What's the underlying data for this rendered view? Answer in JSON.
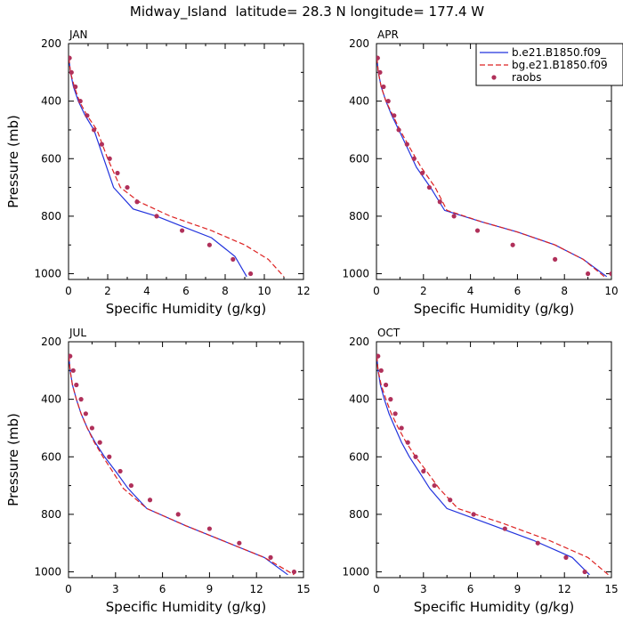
{
  "figure": {
    "title": "Midway_Island  latitude= 28.3 N longitude= 177.4 W"
  },
  "legend": {
    "entries": [
      {
        "label": "b.e21.B1850.f09_",
        "style": "solid",
        "color": "#2233dd"
      },
      {
        "label": "bg.e21.B1850.f09",
        "style": "dashed",
        "color": "#dd2222"
      },
      {
        "label": "raobs",
        "style": "dots",
        "color": "#b0305a"
      }
    ]
  },
  "colors": {
    "model_b": "#2233dd",
    "model_bg": "#dd2222",
    "raobs": "#b0305a"
  },
  "chart_data": [
    {
      "type": "line",
      "panel_label": "JAN",
      "xlabel": "Specific Humidity (g/kg)",
      "ylabel": "Pressure (mb)",
      "xlim": [
        0,
        12
      ],
      "ylim": [
        1020,
        200
      ],
      "xticks": [
        0,
        2,
        4,
        6,
        8,
        10,
        12
      ],
      "yticks": [
        200,
        400,
        600,
        800,
        1000
      ],
      "show_ylabel": true,
      "series": [
        {
          "name": "b.e21.B1850.f09_",
          "x": [
            0.02,
            0.1,
            0.25,
            0.5,
            0.85,
            1.3,
            1.8,
            2.3,
            3.3,
            4.5,
            5.6,
            7.3,
            8.5,
            9.1
          ],
          "y": [
            250,
            300,
            350,
            400,
            450,
            500,
            600,
            700,
            775,
            800,
            830,
            875,
            940,
            1010
          ]
        },
        {
          "name": "bg.e21.B1850.f09",
          "x": [
            0.02,
            0.1,
            0.3,
            0.55,
            0.95,
            1.45,
            2.0,
            2.65,
            3.6,
            5.2,
            7.3,
            9.0,
            10.2,
            11.0
          ],
          "y": [
            250,
            300,
            350,
            400,
            450,
            500,
            600,
            700,
            750,
            800,
            850,
            900,
            950,
            1010
          ]
        },
        {
          "name": "raobs",
          "x": [
            0.05,
            0.15,
            0.35,
            0.6,
            0.95,
            1.3,
            1.7,
            2.1,
            2.5,
            3.0,
            3.5,
            4.5,
            5.8,
            7.2,
            8.4,
            9.3
          ],
          "y": [
            250,
            300,
            350,
            400,
            450,
            500,
            550,
            600,
            650,
            700,
            750,
            800,
            850,
            900,
            950,
            1000
          ]
        }
      ]
    },
    {
      "type": "line",
      "panel_label": "APR",
      "xlabel": "Specific Humidity (g/kg)",
      "ylabel": "",
      "xlim": [
        0,
        10
      ],
      "ylim": [
        1020,
        200
      ],
      "xticks": [
        0,
        2,
        4,
        6,
        8,
        10
      ],
      "yticks": [
        200,
        400,
        600,
        800,
        1000
      ],
      "show_ylabel": false,
      "series": [
        {
          "name": "b.e21.B1850.f09_",
          "x": [
            0.02,
            0.08,
            0.2,
            0.4,
            0.65,
            0.95,
            1.3,
            1.7,
            2.3,
            2.9,
            4.5,
            6.0,
            7.6,
            8.8,
            9.8
          ],
          "y": [
            250,
            300,
            350,
            400,
            450,
            500,
            560,
            630,
            700,
            780,
            820,
            855,
            900,
            950,
            1010
          ]
        },
        {
          "name": "bg.e21.B1850.f09",
          "x": [
            0.02,
            0.08,
            0.2,
            0.4,
            0.7,
            1.0,
            1.4,
            1.9,
            2.5,
            3.0,
            4.5,
            6.0,
            7.6,
            8.8,
            9.7
          ],
          "y": [
            250,
            300,
            350,
            400,
            450,
            500,
            560,
            630,
            700,
            780,
            820,
            855,
            900,
            950,
            1010
          ]
        },
        {
          "name": "raobs",
          "x": [
            0.05,
            0.15,
            0.3,
            0.5,
            0.75,
            0.95,
            1.3,
            1.6,
            1.95,
            2.25,
            2.7,
            3.3,
            4.3,
            5.8,
            7.6,
            9.0,
            10.0
          ],
          "y": [
            250,
            300,
            350,
            400,
            450,
            500,
            550,
            600,
            650,
            700,
            750,
            800,
            850,
            900,
            950,
            1000,
            1000
          ]
        }
      ]
    },
    {
      "type": "line",
      "panel_label": "JUL",
      "xlabel": "Specific Humidity (g/kg)",
      "ylabel": "Pressure (mb)",
      "xlim": [
        0,
        15
      ],
      "ylim": [
        1020,
        200
      ],
      "xticks": [
        0,
        3,
        6,
        9,
        12,
        15
      ],
      "yticks": [
        200,
        400,
        600,
        800,
        1000
      ],
      "show_ylabel": true,
      "series": [
        {
          "name": "b.e21.B1850.f09_",
          "x": [
            0.02,
            0.1,
            0.25,
            0.5,
            0.8,
            1.2,
            1.7,
            2.3,
            3.0,
            3.8,
            5.0,
            7.5,
            10.0,
            12.5,
            14.0
          ],
          "y": [
            250,
            300,
            350,
            400,
            450,
            500,
            550,
            600,
            650,
            710,
            780,
            840,
            895,
            950,
            1010
          ]
        },
        {
          "name": "bg.e21.B1850.f09",
          "x": [
            0.02,
            0.1,
            0.25,
            0.5,
            0.8,
            1.2,
            1.65,
            2.2,
            2.8,
            3.5,
            5.0,
            7.5,
            10.0,
            12.5,
            14.4
          ],
          "y": [
            250,
            300,
            350,
            400,
            450,
            500,
            550,
            600,
            650,
            710,
            780,
            840,
            895,
            950,
            1010
          ]
        },
        {
          "name": "raobs",
          "x": [
            0.1,
            0.3,
            0.5,
            0.8,
            1.1,
            1.5,
            2.0,
            2.6,
            3.3,
            4.0,
            5.2,
            7.0,
            9.0,
            10.9,
            12.9,
            14.4
          ],
          "y": [
            250,
            300,
            350,
            400,
            450,
            500,
            550,
            600,
            650,
            700,
            750,
            800,
            850,
            900,
            950,
            1000
          ]
        }
      ]
    },
    {
      "type": "line",
      "panel_label": "OCT",
      "xlabel": "Specific Humidity (g/kg)",
      "ylabel": "",
      "xlim": [
        0,
        15
      ],
      "ylim": [
        1020,
        200
      ],
      "xticks": [
        0,
        3,
        6,
        9,
        12,
        15
      ],
      "yticks": [
        200,
        400,
        600,
        800,
        1000
      ],
      "show_ylabel": false,
      "series": [
        {
          "name": "b.e21.B1850.f09_",
          "x": [
            0.02,
            0.1,
            0.25,
            0.5,
            0.8,
            1.2,
            1.6,
            2.1,
            2.7,
            3.4,
            4.5,
            7.0,
            10.0,
            12.5,
            13.6
          ],
          "y": [
            250,
            300,
            350,
            400,
            450,
            500,
            550,
            600,
            650,
            710,
            780,
            830,
            890,
            950,
            1010
          ]
        },
        {
          "name": "bg.e21.B1850.f09",
          "x": [
            0.02,
            0.1,
            0.3,
            0.6,
            0.95,
            1.4,
            1.9,
            2.5,
            3.2,
            4.0,
            5.2,
            8.0,
            11.0,
            13.5,
            14.8
          ],
          "y": [
            250,
            300,
            350,
            400,
            450,
            500,
            550,
            600,
            650,
            710,
            780,
            830,
            890,
            950,
            1010
          ]
        },
        {
          "name": "raobs",
          "x": [
            0.1,
            0.3,
            0.6,
            0.9,
            1.2,
            1.6,
            2.0,
            2.5,
            3.0,
            3.7,
            4.7,
            6.2,
            8.2,
            10.3,
            12.1,
            13.3
          ],
          "y": [
            250,
            300,
            350,
            400,
            450,
            500,
            550,
            600,
            650,
            700,
            750,
            800,
            850,
            900,
            950,
            1000
          ]
        }
      ]
    }
  ]
}
